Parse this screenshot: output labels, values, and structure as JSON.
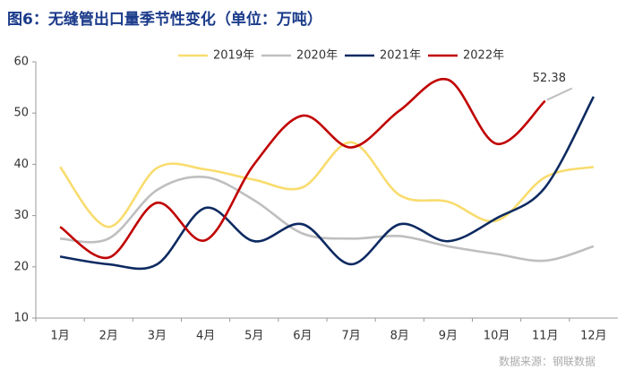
{
  "chart_data": {
    "type": "line",
    "title": "图6：无缝管出口量季节性变化（单位：万吨）",
    "source": "数据来源：钢联数据",
    "categories": [
      "1月",
      "2月",
      "3月",
      "4月",
      "5月",
      "6月",
      "7月",
      "8月",
      "9月",
      "10月",
      "11月",
      "12月"
    ],
    "series": [
      {
        "name": "2019年",
        "color": "#f9dc6e",
        "values": [
          39.5,
          27.8,
          39.3,
          39.0,
          37.0,
          35.5,
          44.3,
          34.0,
          32.7,
          29.0,
          37.5,
          39.5
        ]
      },
      {
        "name": "2020年",
        "color": "#bfbfbf",
        "values": [
          25.5,
          25.5,
          35.0,
          37.5,
          33.0,
          26.5,
          25.5,
          26.0,
          24.0,
          22.5,
          21.2,
          24.0
        ]
      },
      {
        "name": "2021年",
        "color": "#0d2a61",
        "values": [
          22.0,
          20.5,
          20.5,
          31.5,
          25.0,
          28.3,
          20.5,
          28.3,
          25.0,
          29.5,
          35.5,
          53.2
        ]
      },
      {
        "name": "2022年",
        "color": "#c00000",
        "values": [
          27.8,
          21.8,
          32.5,
          25.2,
          40.0,
          49.5,
          43.3,
          50.5,
          56.5,
          44.0,
          52.38,
          null
        ]
      }
    ],
    "ylim": [
      10,
      60
    ],
    "yticks": [
      10,
      20,
      30,
      40,
      50,
      60
    ],
    "grid": false
  }
}
